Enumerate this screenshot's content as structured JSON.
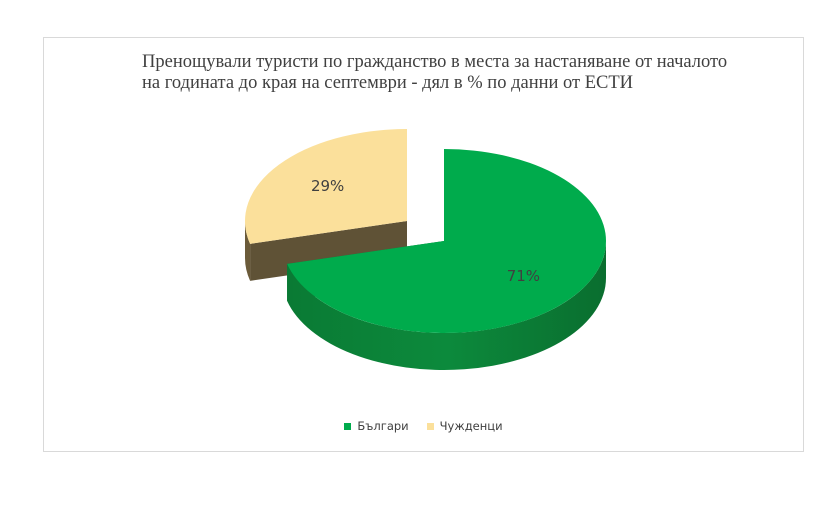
{
  "chart_data": {
    "type": "pie",
    "title": "Пренощували туристи по гражданство в места за настаняване  от началото на годината до края на септември - дял в %  по данни от ЕСТИ",
    "categories": [
      "Българи",
      "Чужденци"
    ],
    "values": [
      71,
      29
    ],
    "data_labels": [
      "71%",
      "29%"
    ],
    "colors": [
      "#00ab4c",
      "#fbe09b"
    ],
    "style": "3d-exploded",
    "legend_position": "bottom"
  }
}
